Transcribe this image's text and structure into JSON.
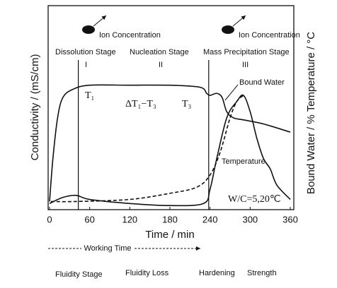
{
  "chart_data": {
    "type": "line",
    "xlabel": "Time / min",
    "ylabel": "Conductivity / (mS/cm)",
    "y2label": "Bound Water / % Temperature / °C",
    "xlim": [
      0,
      360
    ],
    "xticks": [
      0,
      60,
      120,
      180,
      240,
      300,
      360
    ],
    "ylim": [
      0,
      100
    ],
    "stage_boundaries": [
      43,
      238
    ],
    "series": [
      {
        "color": "#111111",
        "dashed": false,
        "x": [
          0,
          5,
          12,
          20,
          35,
          60,
          120,
          180,
          225,
          235,
          240,
          250,
          258,
          265,
          275,
          290,
          320,
          360
        ],
        "values": [
          4,
          25,
          45,
          55,
          59,
          61,
          61,
          61,
          60,
          57,
          56,
          57,
          55,
          48,
          45,
          44,
          42,
          38
        ]
      },
      {
        "name": "Bound Water",
        "color": "#111111",
        "dashed": true,
        "x": [
          2,
          40,
          120,
          180,
          220,
          240,
          255,
          270,
          280,
          290
        ],
        "values": [
          4,
          4,
          5,
          8,
          11,
          17,
          28,
          45,
          53,
          56
        ]
      },
      {
        "name": "Temperature",
        "color": "#111111",
        "dashed": false,
        "x": [
          0,
          20,
          40,
          60,
          120,
          180,
          230,
          240,
          250,
          265,
          280,
          290,
          300,
          310,
          320,
          330,
          340,
          360
        ],
        "values": [
          3,
          6,
          7,
          5,
          3,
          2,
          3,
          10,
          25,
          45,
          53,
          56,
          48,
          35,
          25,
          20,
          12,
          5
        ]
      }
    ],
    "annotations": {
      "ion_1": "Ion Concentration",
      "ion_2": "Ion Concentration",
      "stage_1": "Dissolution Stage",
      "stage_2": "Nucleation Stage",
      "stage_3": "Mass Precipitation Stage",
      "roman_1": "I",
      "roman_2": "II",
      "roman_3": "III",
      "t1": "T₁",
      "delta": "ΔT₁−T₃",
      "t3": "T₃",
      "wc": "W/C=5,20℃"
    }
  },
  "timeline": {
    "working_time": "Working Time",
    "phases": [
      "Fluidity Stage",
      "Fluidity Loss",
      "Hardening",
      "Strength"
    ]
  }
}
